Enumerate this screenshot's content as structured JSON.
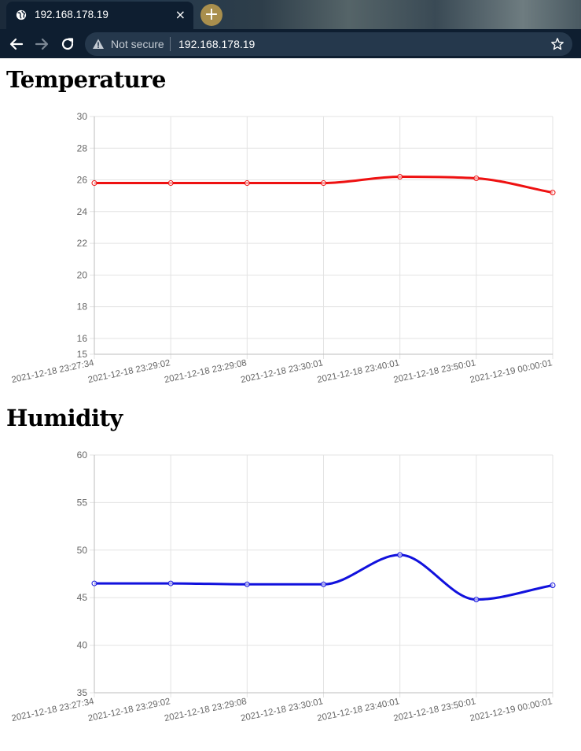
{
  "browser": {
    "tab_title": "192.168.178.19",
    "close_glyph": "×",
    "new_tab_glyph": "+",
    "not_secure": "Not secure",
    "url": "192.168.178.19",
    "icons": [
      "globe-icon",
      "back-icon",
      "forward-icon",
      "reload-icon",
      "warning-icon",
      "star-icon"
    ]
  },
  "sections": {
    "temperature_heading": "Temperature",
    "humidity_heading": "Humidity"
  },
  "chart_data": [
    {
      "type": "line",
      "title": "",
      "xlabel": "",
      "ylabel": "",
      "categories": [
        "2021-12-18 23:27:34",
        "2021-12-18 23:29:02",
        "2021-12-18 23:29:08",
        "2021-12-18 23:30:01",
        "2021-12-18 23:40:01",
        "2021-12-18 23:50:01",
        "2021-12-19 00:00:01"
      ],
      "series": [
        {
          "values": [
            25.8,
            25.8,
            25.8,
            25.8,
            26.2,
            26.1,
            25.2
          ],
          "color": "#ee1111"
        }
      ],
      "ylim": [
        15,
        30
      ],
      "yticks": [
        15,
        16,
        18,
        20,
        22,
        24,
        26,
        28,
        30
      ],
      "grid": true,
      "curve": "smooth"
    },
    {
      "type": "line",
      "title": "",
      "xlabel": "",
      "ylabel": "",
      "categories": [
        "2021-12-18 23:27:34",
        "2021-12-18 23:29:02",
        "2021-12-18 23:29:08",
        "2021-12-18 23:30:01",
        "2021-12-18 23:40:01",
        "2021-12-18 23:50:01",
        "2021-12-19 00:00:01"
      ],
      "series": [
        {
          "values": [
            46.5,
            46.5,
            46.4,
            46.4,
            49.5,
            44.8,
            46.3
          ],
          "color": "#1111dd"
        }
      ],
      "ylim": [
        35,
        60
      ],
      "yticks": [
        35,
        40,
        45,
        50,
        55,
        60
      ],
      "grid": true,
      "curve": "smooth"
    }
  ]
}
